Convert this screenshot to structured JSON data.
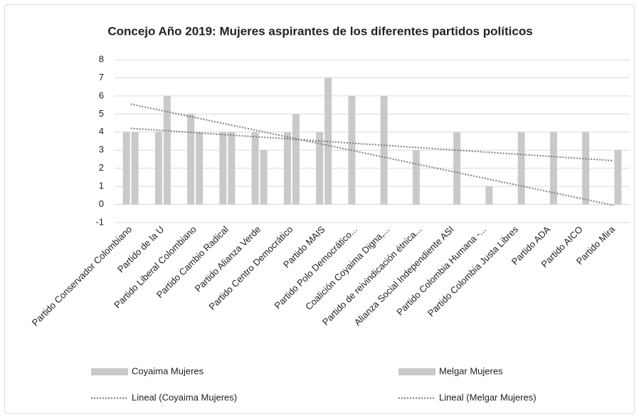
{
  "chart_data": {
    "type": "bar",
    "title": "Concejo Año 2019: Mujeres aspirantes de los diferentes partidos políticos",
    "categories": [
      "Partido Conservador Colombiano",
      "Partido de la U",
      "Partido Liberal Colombiano",
      "Partido Cambio Radical",
      "Partido Alianza Verde",
      "Partido Centro Democrático",
      "Partido MAIS",
      "Partido Polo Democrático...",
      "Coalición Coyaima Digna,...",
      "Partido de reivindicación étnica...",
      "Alianza Social Independiente ASI",
      "Partido Colombia Humana -...",
      "Partido Colombia Justa Libres",
      "Partido ADA",
      "Partido AICO",
      "Partido Mira"
    ],
    "series": [
      {
        "name": "Coyaima Mujeres",
        "color": "#c9c9c9",
        "values": [
          4,
          4,
          5,
          4,
          4,
          4,
          4,
          6,
          6,
          3,
          0,
          0,
          0,
          0,
          0,
          0
        ]
      },
      {
        "name": "Melgar Mujeres",
        "color": "#c9c9c9",
        "values": [
          4,
          6,
          4,
          4,
          3,
          5,
          7,
          0,
          0,
          0,
          4,
          1,
          4,
          4,
          4,
          3
        ]
      }
    ],
    "trend_names": [
      "Lineal (Coyaima Mujeres)",
      "Lineal (Melgar Mujeres)"
    ],
    "trend_color": "#7f7f7f",
    "ylim": [
      -1,
      8
    ],
    "yticks": [
      -1,
      0,
      1,
      2,
      3,
      4,
      5,
      6,
      7,
      8
    ],
    "grid": true
  }
}
